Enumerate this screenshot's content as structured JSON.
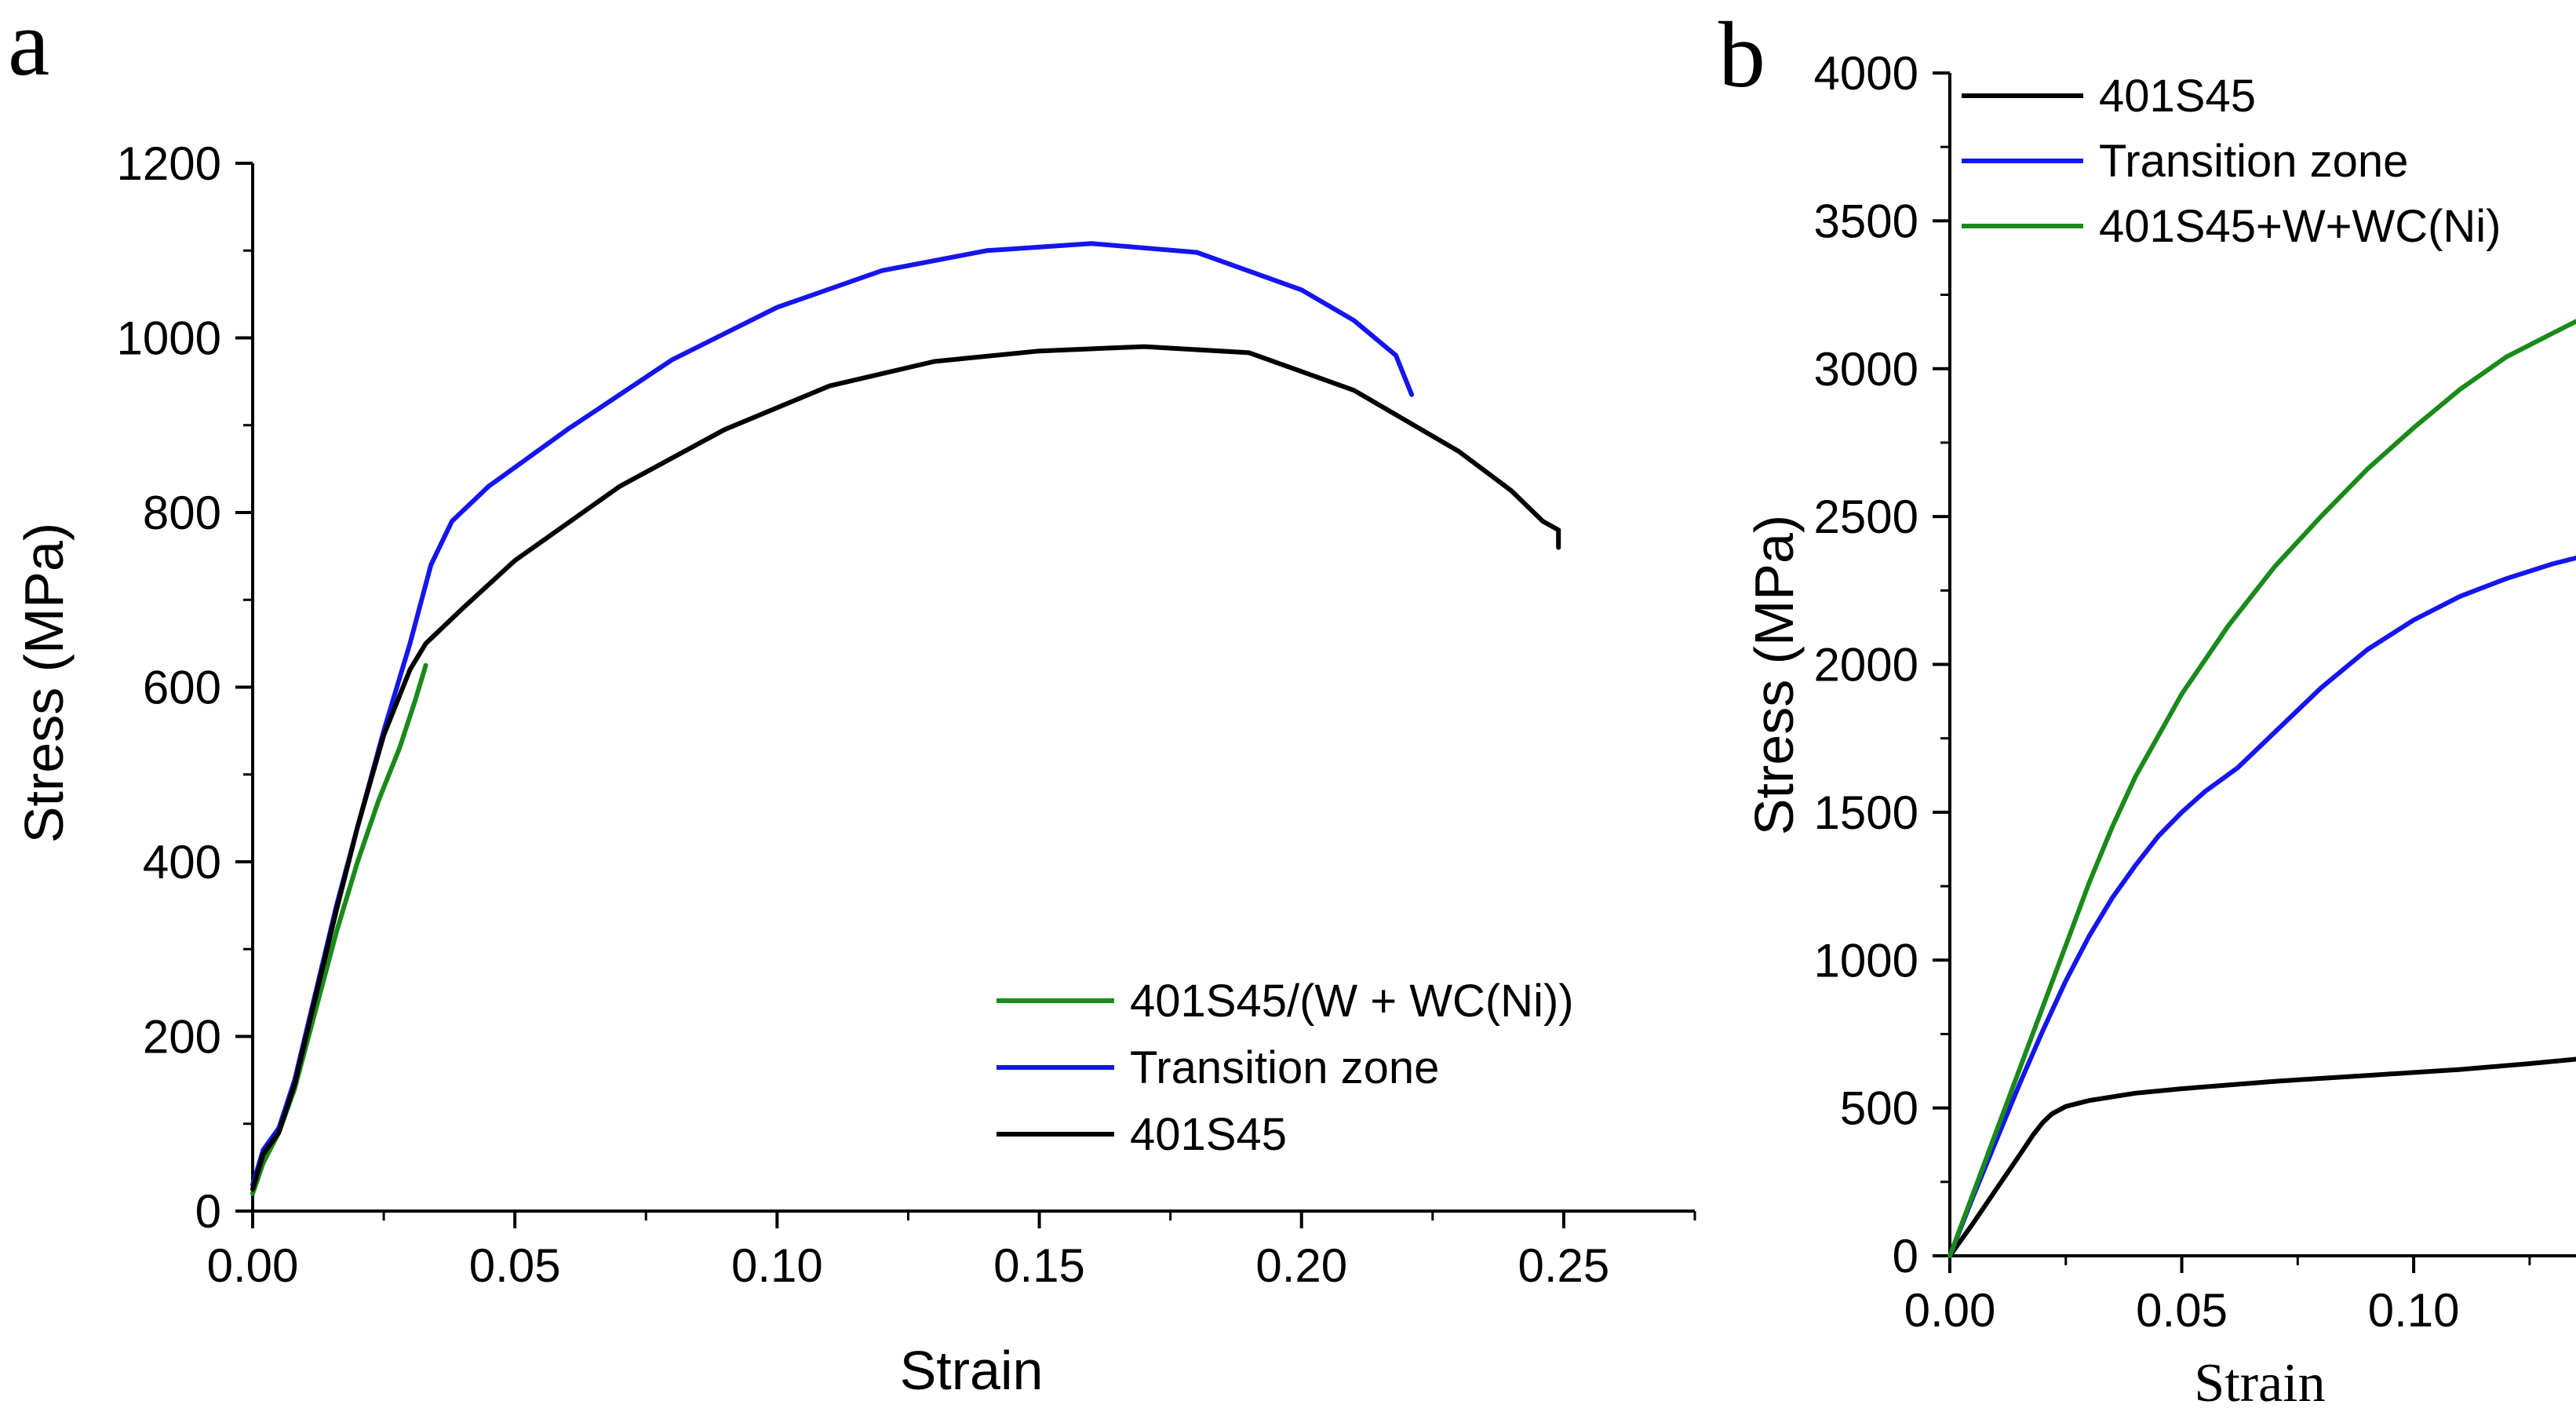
{
  "chart_data": [
    {
      "panel_label": "a",
      "type": "line",
      "xlabel": "Strain",
      "ylabel": "Stress (MPa)",
      "xlim": [
        0,
        0.275
      ],
      "ylim": [
        0,
        1200
      ],
      "xticks": [
        0.0,
        0.05,
        0.1,
        0.15,
        0.2,
        0.25
      ],
      "xtick_labels": [
        "0.00",
        "0.05",
        "0.10",
        "0.15",
        "0.20",
        "0.25"
      ],
      "yticks": [
        0,
        200,
        400,
        600,
        800,
        1000,
        1200
      ],
      "ytick_labels": [
        "0",
        "200",
        "400",
        "600",
        "800",
        "1000",
        "1200"
      ],
      "grid": false,
      "legend_position": "bottom-right",
      "series": [
        {
          "name": "401S45/(W + WC(Ni))",
          "color": "#1a8a1a",
          "x": [
            0.0,
            0.002,
            0.005,
            0.008,
            0.012,
            0.016,
            0.02,
            0.024,
            0.028,
            0.031,
            0.033
          ],
          "y": [
            20,
            55,
            90,
            140,
            230,
            320,
            400,
            470,
            530,
            585,
            625
          ]
        },
        {
          "name": "Transition zone",
          "color": "#1515ee",
          "x": [
            0.0,
            0.002,
            0.005,
            0.008,
            0.012,
            0.016,
            0.02,
            0.025,
            0.03,
            0.034,
            0.038,
            0.045,
            0.06,
            0.08,
            0.1,
            0.12,
            0.14,
            0.16,
            0.18,
            0.2,
            0.21,
            0.218,
            0.221
          ],
          "y": [
            30,
            70,
            95,
            150,
            250,
            350,
            440,
            550,
            650,
            740,
            790,
            830,
            895,
            975,
            1035,
            1077,
            1100,
            1108,
            1098,
            1055,
            1020,
            980,
            935
          ]
        },
        {
          "name": "401S45",
          "color": "#000000",
          "x": [
            0.0,
            0.002,
            0.005,
            0.008,
            0.012,
            0.016,
            0.02,
            0.025,
            0.03,
            0.033,
            0.04,
            0.05,
            0.07,
            0.09,
            0.11,
            0.13,
            0.15,
            0.17,
            0.19,
            0.21,
            0.23,
            0.24,
            0.246,
            0.249,
            0.249
          ],
          "y": [
            25,
            65,
            90,
            145,
            245,
            345,
            440,
            545,
            620,
            650,
            690,
            745,
            830,
            895,
            945,
            973,
            985,
            990,
            983,
            940,
            870,
            825,
            790,
            780,
            760
          ]
        }
      ]
    },
    {
      "panel_label": "b",
      "type": "line",
      "xlabel": "Strain",
      "ylabel": "Stress (MPa)",
      "xlim": [
        0,
        0.135
      ],
      "ylim": [
        0,
        4000
      ],
      "xticks": [
        0.0,
        0.05,
        0.1
      ],
      "xtick_labels": [
        "0.00",
        "0.05",
        "0.10"
      ],
      "yticks": [
        0,
        500,
        1000,
        1500,
        2000,
        2500,
        3000,
        3500,
        4000
      ],
      "ytick_labels": [
        "0",
        "500",
        "1000",
        "1500",
        "2000",
        "2500",
        "3000",
        "3500",
        "4000"
      ],
      "grid": false,
      "legend_position": "top-left",
      "series": [
        {
          "name": "401S45",
          "color": "#000000",
          "x": [
            0.0,
            0.005,
            0.01,
            0.015,
            0.018,
            0.02,
            0.022,
            0.025,
            0.03,
            0.04,
            0.05,
            0.07,
            0.09,
            0.11,
            0.125,
            0.135
          ],
          "y": [
            0,
            110,
            225,
            340,
            410,
            450,
            480,
            505,
            525,
            550,
            565,
            590,
            610,
            630,
            650,
            665
          ]
        },
        {
          "name": "Transition zone",
          "color": "#1515ee",
          "x": [
            0.0,
            0.005,
            0.01,
            0.015,
            0.02,
            0.025,
            0.03,
            0.035,
            0.04,
            0.045,
            0.05,
            0.055,
            0.062,
            0.07,
            0.08,
            0.09,
            0.1,
            0.11,
            0.12,
            0.13,
            0.135
          ],
          "y": [
            0,
            200,
            390,
            580,
            760,
            930,
            1080,
            1210,
            1320,
            1420,
            1500,
            1570,
            1650,
            1770,
            1920,
            2050,
            2150,
            2230,
            2290,
            2340,
            2360
          ]
        },
        {
          "name": "401S45+W+WC(Ni)",
          "color": "#1a8a1a",
          "x": [
            0.0,
            0.005,
            0.01,
            0.015,
            0.02,
            0.025,
            0.03,
            0.035,
            0.04,
            0.05,
            0.06,
            0.07,
            0.08,
            0.09,
            0.1,
            0.11,
            0.12,
            0.13,
            0.135
          ],
          "y": [
            0,
            210,
            420,
            630,
            840,
            1050,
            1260,
            1450,
            1620,
            1900,
            2130,
            2330,
            2500,
            2660,
            2800,
            2930,
            3040,
            3120,
            3160
          ]
        }
      ]
    }
  ]
}
